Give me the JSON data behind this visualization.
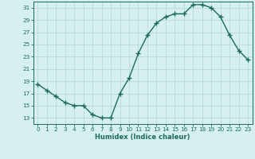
{
  "x": [
    0,
    1,
    2,
    3,
    4,
    5,
    6,
    7,
    8,
    9,
    10,
    11,
    12,
    13,
    14,
    15,
    16,
    17,
    18,
    19,
    20,
    21,
    22,
    23
  ],
  "y": [
    18.5,
    17.5,
    16.5,
    15.5,
    15.0,
    15.0,
    13.5,
    13.0,
    13.0,
    17.0,
    19.5,
    23.5,
    26.5,
    28.5,
    29.5,
    30.0,
    30.0,
    31.5,
    31.5,
    31.0,
    29.5,
    26.5,
    24.0,
    22.5
  ],
  "xlabel": "Humidex (Indice chaleur)",
  "ylim": [
    12,
    32
  ],
  "xlim": [
    -0.5,
    23.5
  ],
  "yticks": [
    13,
    15,
    17,
    19,
    21,
    23,
    25,
    27,
    29,
    31
  ],
  "xticks": [
    0,
    1,
    2,
    3,
    4,
    5,
    6,
    7,
    8,
    9,
    10,
    11,
    12,
    13,
    14,
    15,
    16,
    17,
    18,
    19,
    20,
    21,
    22,
    23
  ],
  "line_color": "#1a6b5a",
  "marker": "+",
  "marker_size": 4,
  "marker_linewidth": 1.0,
  "line_width": 1.0,
  "bg_color": "#d6f0f0",
  "grid_color": "#b8dada",
  "xlabel_fontsize": 6.0,
  "tick_fontsize": 5.2
}
